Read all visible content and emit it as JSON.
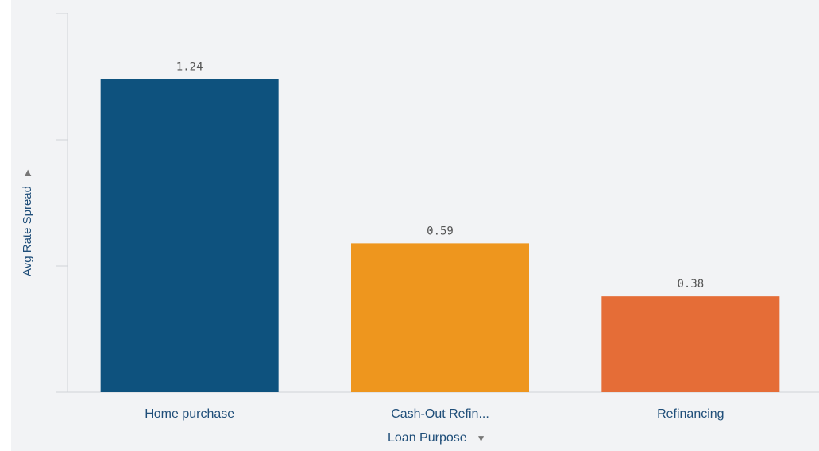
{
  "chart_data": {
    "type": "bar",
    "categories": [
      "Home purchase",
      "Cash-Out Refin...",
      "Refinancing"
    ],
    "values": [
      1.24,
      0.59,
      0.38
    ],
    "value_labels": [
      "1.24",
      "0.59",
      "0.38"
    ],
    "colors": [
      "#0e527e",
      "#ee961e",
      "#e56d37"
    ],
    "xlabel": "Loan Purpose",
    "ylabel": "Avg Rate Spread",
    "ylim": [
      0,
      1.5
    ],
    "grid": false,
    "legend": "none"
  },
  "icons": {
    "x_dropdown": "▼",
    "y_dropdown": "▶"
  }
}
